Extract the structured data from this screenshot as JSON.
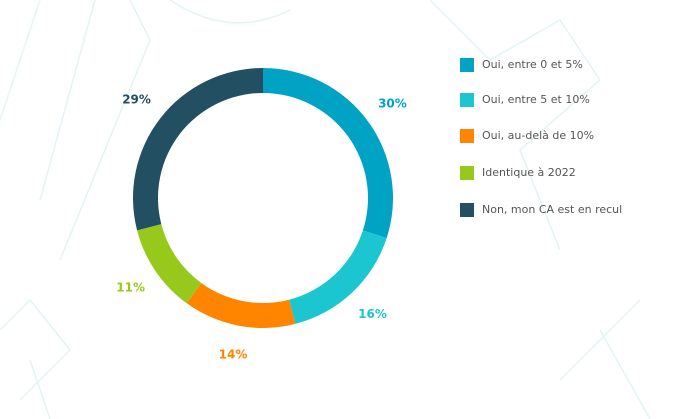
{
  "chart_data": {
    "type": "pie",
    "categories": [
      "Oui, entre 0 et 5%",
      "Oui, entre 5 et 10%",
      "Oui, au-delà de 10%",
      "Identique à 2022",
      "Non, mon CA est en recul"
    ],
    "values": [
      30,
      16,
      14,
      11,
      29
    ],
    "value_labels": [
      "30%",
      "16%",
      "14%",
      "11%",
      "29%"
    ],
    "colors": [
      "#00a3c4",
      "#1cc6d0",
      "#ff8400",
      "#97c91c",
      "#234f63"
    ],
    "legend": "right"
  }
}
